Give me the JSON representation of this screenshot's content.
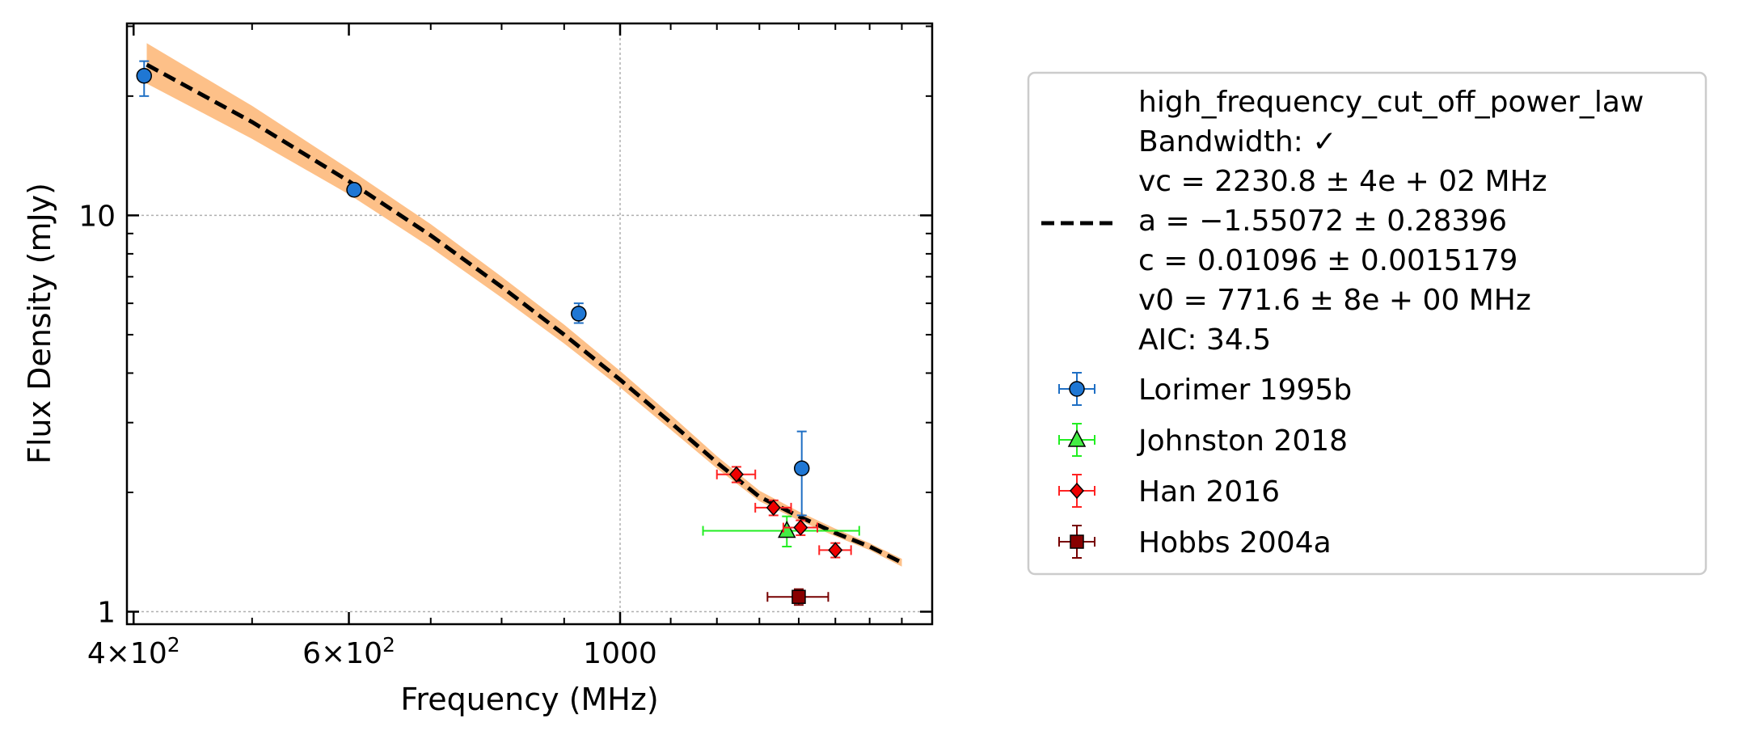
{
  "chart_data": {
    "type": "scatter",
    "title": "",
    "xlabel": "Frequency (MHz)",
    "ylabel": "Flux Density (mJy)",
    "x_scale": "log",
    "y_scale": "log",
    "xlim": [
      395,
      1800
    ],
    "ylim": [
      0.93,
      30.5
    ],
    "grid": true,
    "legend_position": "outside-right",
    "x_ticks": [
      {
        "value": 400,
        "label": "4×10²"
      },
      {
        "value": 600,
        "label": "6×10²"
      },
      {
        "value": 1000,
        "label": "1000"
      }
    ],
    "y_ticks": [
      {
        "value": 1,
        "label": "1"
      },
      {
        "value": 10,
        "label": "10"
      }
    ],
    "fit": {
      "legend_lines": [
        "high_frequency_cut_off_power_law",
        "Bandwidth: ✓",
        "vc = 2230.8 ± 4e + 02 MHz",
        "a = −1.55072 ± 0.28396",
        "c = 0.01096 ± 0.0015179",
        "v0 = 771.6 ± 8e + 00 MHz",
        "AIC: 34.5"
      ],
      "color": "#000000",
      "band_color": "#fdc088",
      "x": [
        410,
        500,
        600,
        700,
        800,
        900,
        1000,
        1100,
        1200,
        1300,
        1400,
        1500,
        1600,
        1700
      ],
      "y": [
        24.0,
        17.2,
        12.2,
        8.9,
        6.6,
        5.0,
        3.85,
        3.0,
        2.38,
        1.95,
        1.74,
        1.58,
        1.46,
        1.33
      ],
      "y_low": [
        21.5,
        15.6,
        11.3,
        8.3,
        6.2,
        4.75,
        3.68,
        2.88,
        2.3,
        1.9,
        1.7,
        1.55,
        1.43,
        1.3
      ],
      "y_high": [
        27.2,
        18.9,
        13.1,
        9.5,
        7.0,
        5.3,
        4.05,
        3.14,
        2.47,
        2.02,
        1.79,
        1.62,
        1.49,
        1.36
      ]
    },
    "series": [
      {
        "name": "Lorimer 1995b",
        "marker": "circle",
        "color": "#1f77d4",
        "err_color": "#1f6fc4",
        "points": [
          {
            "x": 408,
            "y": 22.5,
            "ylo": 20.0,
            "yhi": 24.5,
            "xerr": 0
          },
          {
            "x": 606,
            "y": 11.6,
            "ylo": 11.3,
            "yhi": 11.9,
            "xerr": 0
          },
          {
            "x": 925,
            "y": 5.65,
            "ylo": 5.35,
            "yhi": 6.0,
            "xerr": 0
          },
          {
            "x": 1408,
            "y": 2.3,
            "ylo": 1.75,
            "yhi": 2.85,
            "xerr": 0
          }
        ]
      },
      {
        "name": "Johnston 2018",
        "marker": "triangle",
        "color": "#44ee44",
        "err_color": "#22ee22",
        "points": [
          {
            "x": 1369,
            "y": 1.6,
            "ylo": 1.46,
            "yhi": 1.74,
            "xerr": 200
          }
        ]
      },
      {
        "name": "Han 2016",
        "marker": "diamond",
        "color": "#ee0000",
        "err_color": "#ff2222",
        "points": [
          {
            "x": 1245,
            "y": 2.22,
            "ylo": 2.12,
            "yhi": 2.32,
            "xerr": 45
          },
          {
            "x": 1335,
            "y": 1.83,
            "ylo": 1.75,
            "yhi": 1.91,
            "xerr": 45
          },
          {
            "x": 1405,
            "y": 1.63,
            "ylo": 1.56,
            "yhi": 1.7,
            "xerr": 45
          },
          {
            "x": 1500,
            "y": 1.43,
            "ylo": 1.37,
            "yhi": 1.49,
            "xerr": 45
          }
        ]
      },
      {
        "name": "Hobbs 2004a",
        "marker": "square",
        "color": "#880000",
        "err_color": "#770000",
        "points": [
          {
            "x": 1400,
            "y": 1.09,
            "ylo": 1.04,
            "yhi": 1.14,
            "xerr": 80
          }
        ]
      }
    ]
  }
}
